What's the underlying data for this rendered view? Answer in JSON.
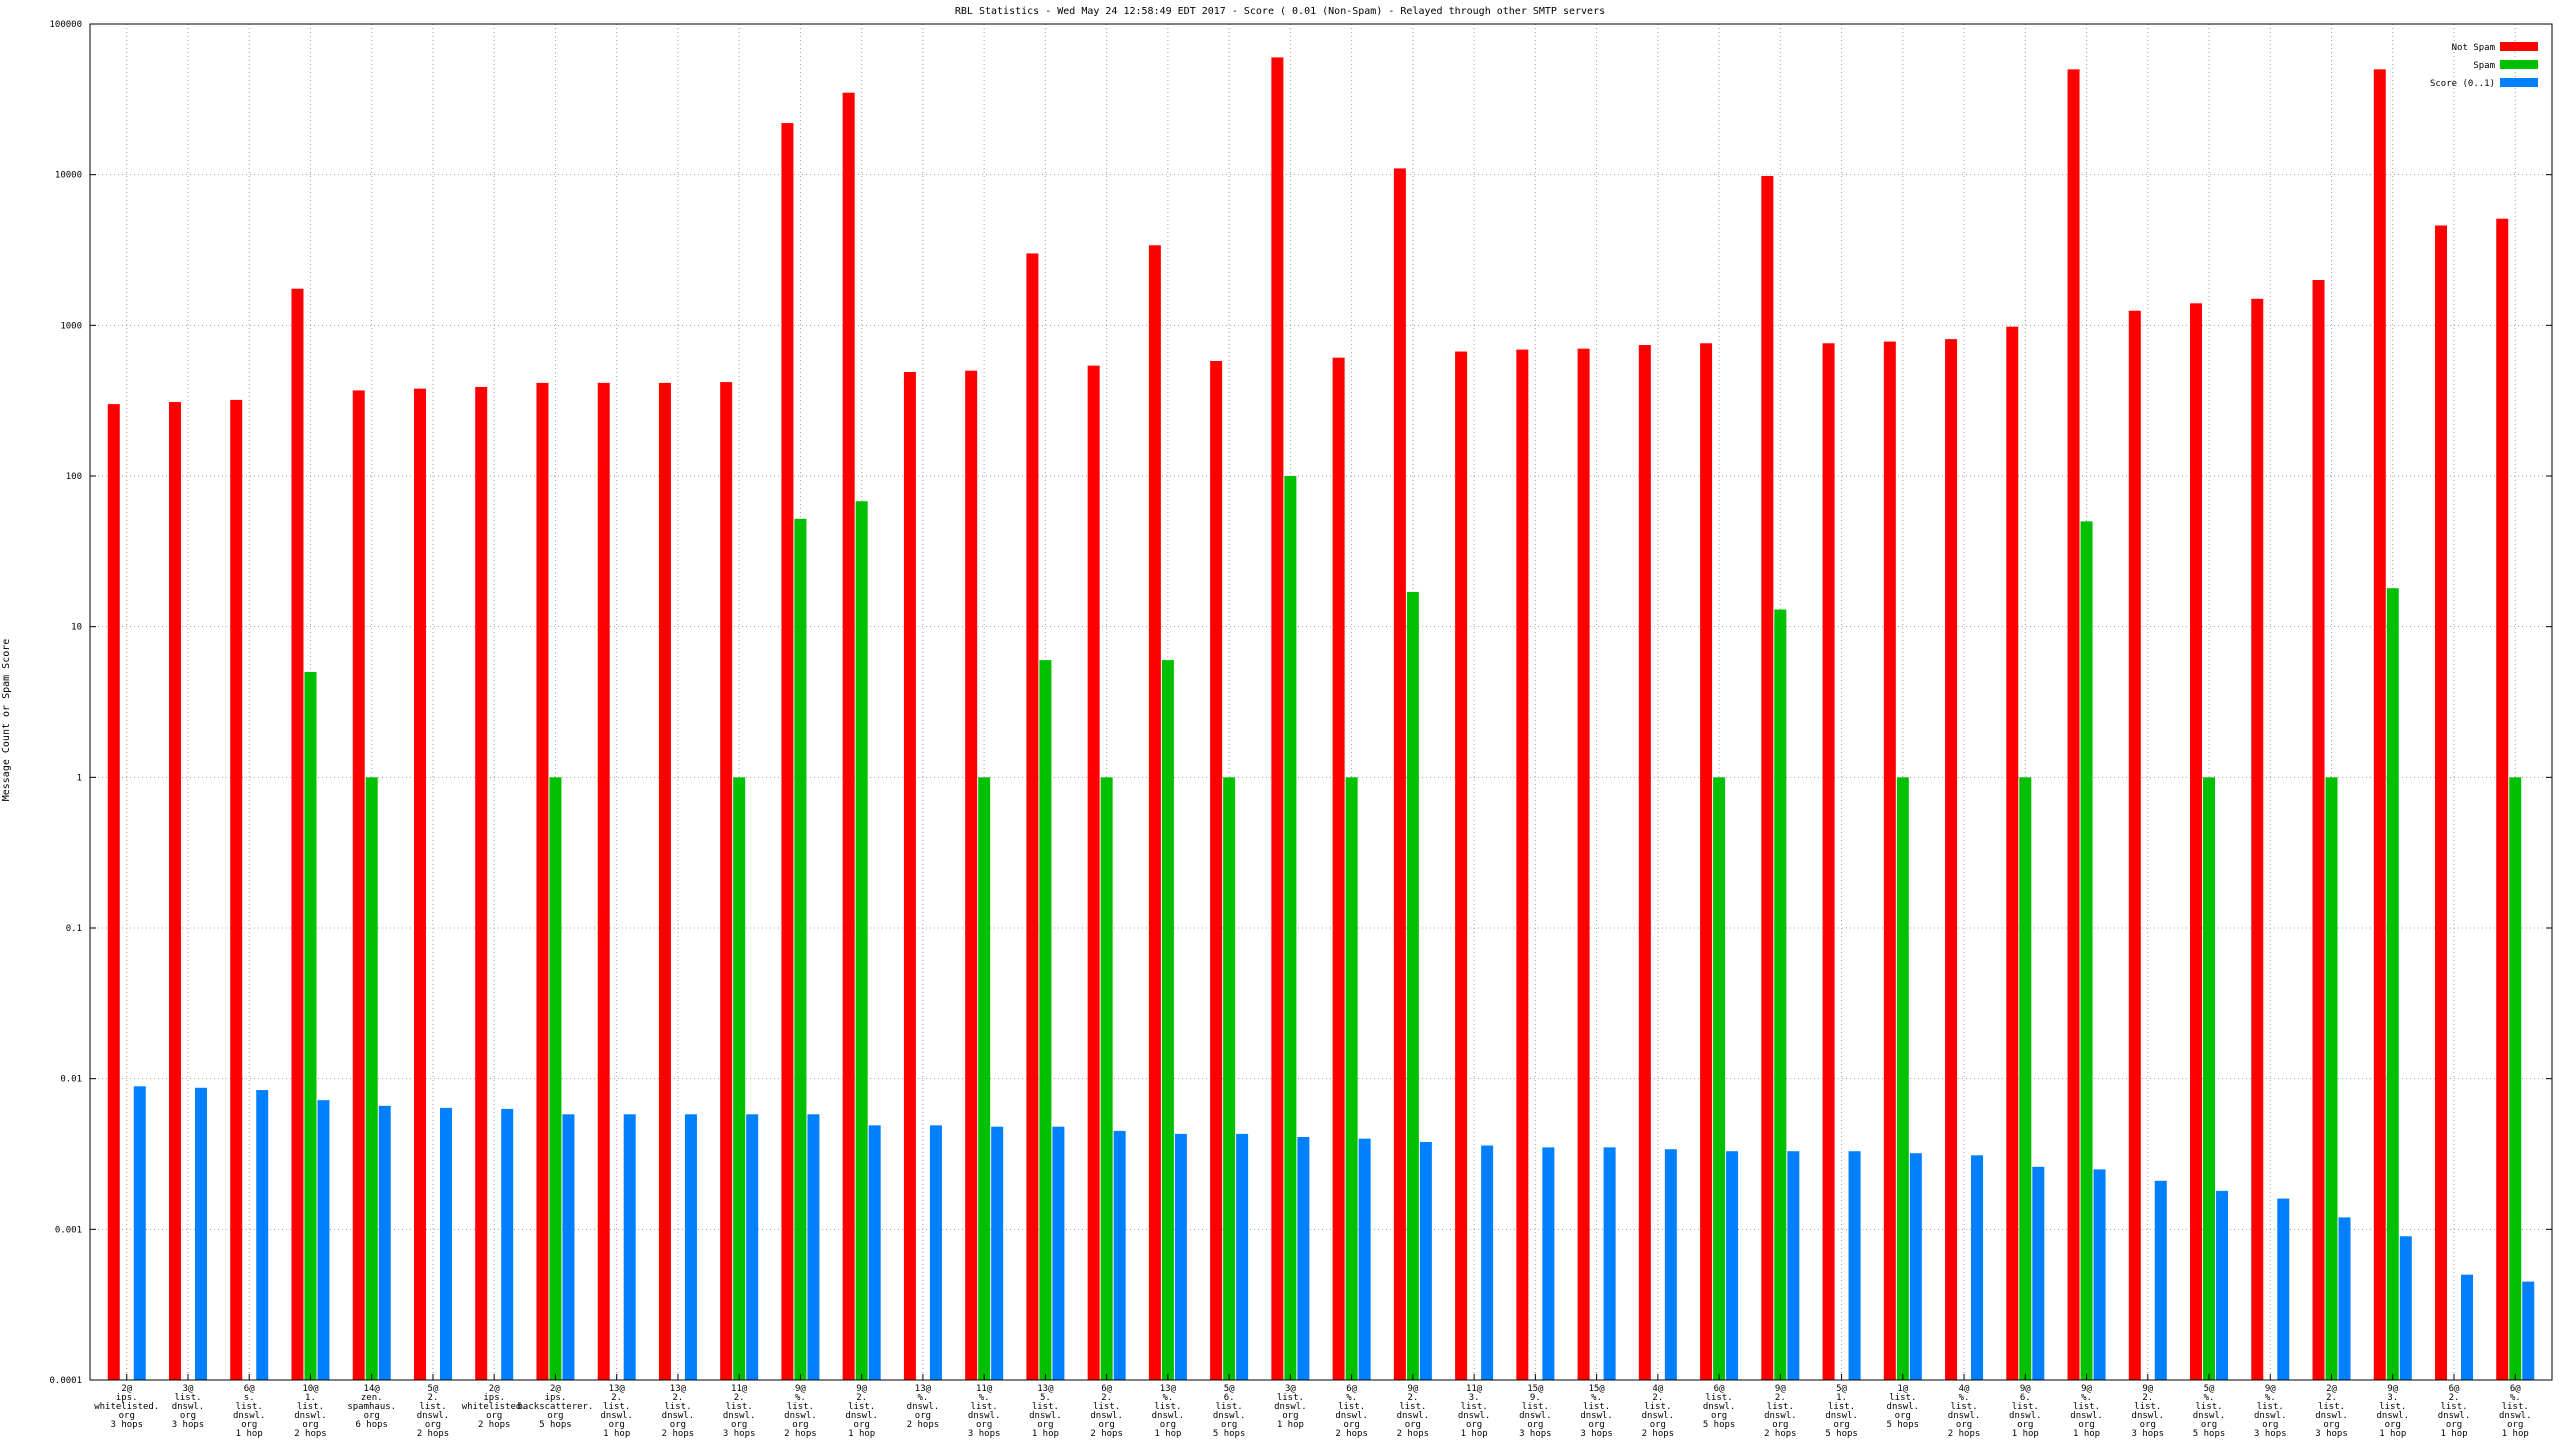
{
  "chart_data": {
    "type": "bar",
    "title": "RBL Statistics - Wed May 24 12:58:49 EDT 2017 - Score ( 0.01 (Non-Spam) - Relayed through other SMTP servers",
    "ylabel": "Message Count or Spam Score",
    "xlabel": "",
    "yscale": "log",
    "ylim": [
      0.0001,
      100000
    ],
    "yticks": [
      {
        "value": 100000,
        "label": "100000"
      },
      {
        "value": 10000,
        "label": "10000"
      },
      {
        "value": 1000,
        "label": "1000"
      },
      {
        "value": 100,
        "label": "100"
      },
      {
        "value": 10,
        "label": "10"
      },
      {
        "value": 1,
        "label": "1"
      },
      {
        "value": 0.1,
        "label": "0.1"
      },
      {
        "value": 0.01,
        "label": "0.01"
      },
      {
        "value": 0.001,
        "label": "0.001"
      },
      {
        "value": 0.0001,
        "label": "0.0001"
      }
    ],
    "grid": true,
    "legend_position": "top-right",
    "colors": {
      "not_spam": "#ff0000",
      "spam": "#00c000",
      "score": "#0080ff"
    },
    "categories": [
      [
        "2@",
        "ips.",
        "whitelisted.",
        "org",
        "3 hops"
      ],
      [
        "3@",
        "list.",
        "dnswl.",
        "org",
        "3 hops"
      ],
      [
        "6@",
        "s.",
        "list.",
        "dnswl.",
        "org",
        "1 hop"
      ],
      [
        "10@",
        "1.",
        "list.",
        "dnswl.",
        "org",
        "2 hops"
      ],
      [
        "14@",
        "zen.",
        "spamhaus.",
        "org",
        "6 hops"
      ],
      [
        "5@",
        "2.",
        "list.",
        "dnswl.",
        "org",
        "2 hops"
      ],
      [
        "2@",
        "ips.",
        "whitelisted.",
        "org",
        "2 hops"
      ],
      [
        "2@",
        "ips.",
        "backscatterer.",
        "org",
        "5 hops"
      ],
      [
        "13@",
        "2.",
        "list.",
        "dnswl.",
        "org",
        "1 hop"
      ],
      [
        "13@",
        "2.",
        "list.",
        "dnswl.",
        "org",
        "2 hops"
      ],
      [
        "11@",
        "2.",
        "list.",
        "dnswl.",
        "org",
        "3 hops"
      ],
      [
        "9@",
        "%.",
        "list.",
        "dnswl.",
        "org",
        "2 hops"
      ],
      [
        "9@",
        "2.",
        "list.",
        "dnswl.",
        "org",
        "1 hop"
      ],
      [
        "13@",
        "%.",
        "dnswl.",
        "org",
        "2 hops"
      ],
      [
        "11@",
        "%.",
        "list.",
        "dnswl.",
        "org",
        "3 hops"
      ],
      [
        "13@",
        "5.",
        "list.",
        "dnswl.",
        "org",
        "1 hop"
      ],
      [
        "6@",
        "2.",
        "list.",
        "dnswl.",
        "org",
        "2 hops"
      ],
      [
        "13@",
        "%.",
        "list.",
        "dnswl.",
        "org",
        "1 hop"
      ],
      [
        "5@",
        "6.",
        "list.",
        "dnswl.",
        "org",
        "5 hops"
      ],
      [
        "3@",
        "list.",
        "dnswl.",
        "org",
        "1 hop"
      ],
      [
        "6@",
        "%.",
        "list.",
        "dnswl.",
        "org",
        "2 hops"
      ],
      [
        "9@",
        "2.",
        "list.",
        "dnswl.",
        "org",
        "2 hops"
      ],
      [
        "11@",
        "3.",
        "list.",
        "dnswl.",
        "org",
        "1 hop"
      ],
      [
        "15@",
        "9.",
        "list.",
        "dnswl.",
        "org",
        "3 hops"
      ],
      [
        "15@",
        "%.",
        "list.",
        "dnswl.",
        "org",
        "3 hops"
      ],
      [
        "4@",
        "2.",
        "list.",
        "dnswl.",
        "org",
        "2 hops"
      ],
      [
        "6@",
        "list.",
        "dnswl.",
        "org",
        "5 hops"
      ],
      [
        "9@",
        "2.",
        "list.",
        "dnswl.",
        "org",
        "2 hops"
      ],
      [
        "5@",
        "1.",
        "list.",
        "dnswl.",
        "org",
        "5 hops"
      ],
      [
        "1@",
        "list.",
        "dnswl.",
        "org",
        "5 hops"
      ],
      [
        "4@",
        "%.",
        "list.",
        "dnswl.",
        "org",
        "2 hops"
      ],
      [
        "9@",
        "6.",
        "list.",
        "dnswl.",
        "org",
        "1 hop"
      ],
      [
        "9@",
        "%.",
        "list.",
        "dnswl.",
        "org",
        "1 hop"
      ],
      [
        "9@",
        "2.",
        "list.",
        "dnswl.",
        "org",
        "3 hops"
      ],
      [
        "5@",
        "%.",
        "list.",
        "dnswl.",
        "org",
        "5 hops"
      ],
      [
        "9@",
        "%.",
        "list.",
        "dnswl.",
        "org",
        "3 hops"
      ],
      [
        "2@",
        "2.",
        "list.",
        "dnswl.",
        "org",
        "3 hops"
      ],
      [
        "9@",
        "3.",
        "list.",
        "dnswl.",
        "org",
        "1 hop"
      ],
      [
        "6@",
        "2.",
        "list.",
        "dnswl.",
        "org",
        "1 hop"
      ],
      [
        "6@",
        "%.",
        "list.",
        "dnswl.",
        "org",
        "1 hop"
      ]
    ],
    "series": [
      {
        "name": "Not Spam",
        "values": [
          300,
          310,
          320,
          1750,
          370,
          380,
          390,
          415,
          415,
          415,
          420,
          22000,
          35000,
          490,
          500,
          3000,
          540,
          3400,
          580,
          60000,
          610,
          11000,
          670,
          690,
          700,
          740,
          760,
          9800,
          760,
          780,
          810,
          980,
          50000,
          1250,
          1400,
          1500,
          2000,
          50000,
          4600,
          5100
        ]
      },
      {
        "name": "Spam",
        "values": [
          null,
          null,
          null,
          5,
          1,
          null,
          null,
          1,
          null,
          null,
          1,
          52,
          68,
          null,
          1,
          6,
          1,
          6,
          1,
          100,
          1,
          17,
          null,
          null,
          null,
          null,
          1,
          13,
          null,
          1,
          null,
          1,
          50,
          null,
          1,
          null,
          1,
          18,
          null,
          1
        ]
      },
      {
        "name": "Score (0..1)",
        "values": [
          0.0089,
          0.0087,
          0.0084,
          0.0072,
          0.0066,
          0.0064,
          0.0063,
          0.0058,
          0.0058,
          0.0058,
          0.0058,
          0.0058,
          0.0049,
          0.0049,
          0.0048,
          0.0048,
          0.0045,
          0.0043,
          0.0043,
          0.0041,
          0.004,
          0.0038,
          0.0036,
          0.0035,
          0.0035,
          0.0034,
          0.0033,
          0.0033,
          0.0033,
          0.0032,
          0.0031,
          0.0026,
          0.0025,
          0.0021,
          0.0018,
          0.0016,
          0.0012,
          0.0009,
          0.0005,
          0.00045
        ]
      }
    ]
  }
}
